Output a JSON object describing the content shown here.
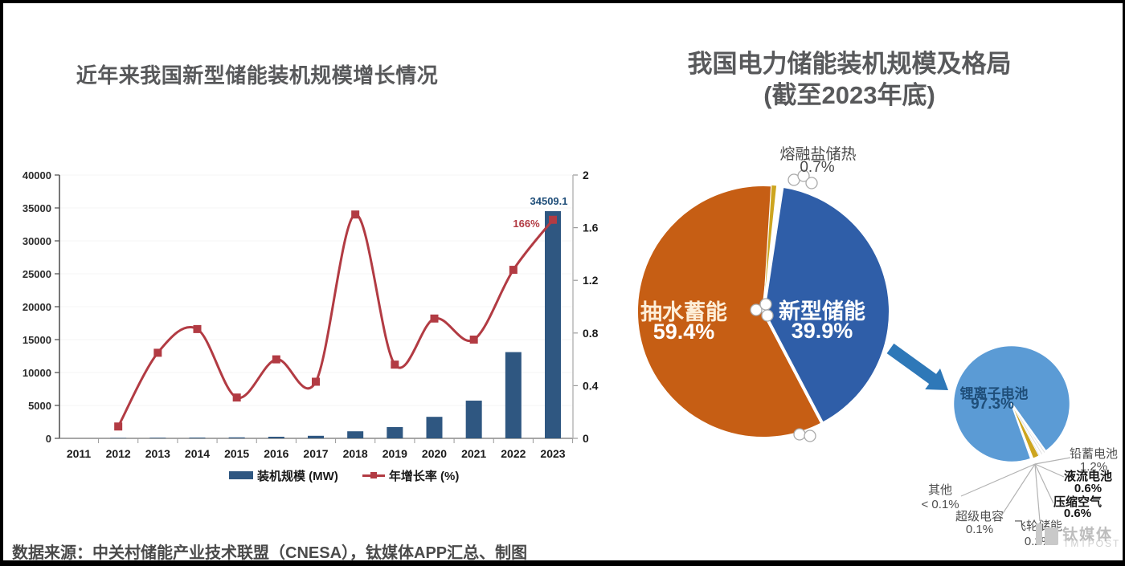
{
  "colors": {
    "bar": "#2F5781",
    "bar_label": "#1F4E79",
    "line": "#B23B43",
    "pie_orange": "#C65E14",
    "pie_blue": "#2F5EA8",
    "pie_gold": "#CDA51F",
    "pie_lightblue": "#5B9BD5",
    "arrow": "#2E78B8",
    "axis_dark": "#4a4a4a",
    "axis_gray": "#8a8a8a",
    "axis_light": "#b8b8b8",
    "leader_line": "#b3b3b3"
  },
  "chart_data": [
    {
      "type": "bar+line",
      "title": "近年来我国新型储能装机规模增长情况",
      "categories": [
        "2011",
        "2012",
        "2013",
        "2014",
        "2015",
        "2016",
        "2017",
        "2018",
        "2019",
        "2020",
        "2021",
        "2022",
        "2023"
      ],
      "series": [
        {
          "name": "装机规模 (MW)",
          "type": "bar",
          "axis": "left",
          "values": [
            30,
            55,
            90,
            115,
            150,
            243,
            389,
            1073,
            1709,
            3269,
            5729,
            13100,
            34509.1
          ]
        },
        {
          "name": "年增长率 (%)",
          "type": "line",
          "axis": "right",
          "values": [
            null,
            0.09,
            0.65,
            0.83,
            0.31,
            0.6,
            0.43,
            1.7,
            0.56,
            0.91,
            0.75,
            1.28,
            1.66
          ]
        }
      ],
      "left_axis": {
        "ylim": [
          0,
          40000
        ],
        "ticks": [
          0,
          5000,
          10000,
          15000,
          20000,
          25000,
          30000,
          35000,
          40000
        ]
      },
      "right_axis": {
        "ylim": [
          0,
          2
        ],
        "ticks": [
          0,
          0.4,
          0.8,
          1.2,
          1.6,
          2
        ]
      },
      "annotations": [
        {
          "text": "34509.1",
          "target": "2023-bar"
        },
        {
          "text": "166%",
          "target": "2023-line-point"
        }
      ],
      "legend": [
        {
          "label": "装机规模 (MW)",
          "swatch": "bar"
        },
        {
          "label": "年增长率 (%)",
          "swatch": "line"
        }
      ],
      "grid": "off"
    },
    {
      "type": "pie",
      "title": "我国电力储能装机规模及格局",
      "subtitle": "(截至2023年底)",
      "slices": [
        {
          "label": "抽水蓄能",
          "pct": 59.4,
          "pct_label": "59.4%"
        },
        {
          "label": "新型储能",
          "pct": 39.9,
          "pct_label": "39.9%"
        },
        {
          "label": "熔融盐储热",
          "pct": 0.7,
          "pct_label": "0.7%"
        }
      ]
    },
    {
      "type": "pie",
      "slices": [
        {
          "label": "锂离子电池",
          "pct": 97.3,
          "pct_label": "97.3%"
        },
        {
          "label": "铅蓄电池",
          "pct": 1.2,
          "pct_label": "1.2%"
        },
        {
          "label": "液流电池",
          "pct": 0.6,
          "pct_label": "0.6%"
        },
        {
          "label": "压缩空气",
          "pct": 0.6,
          "pct_label": "0.6%"
        },
        {
          "label": "飞轮储能",
          "pct": 0.2,
          "pct_label": "0.2%"
        },
        {
          "label": "超级电容",
          "pct": 0.1,
          "pct_label": "0.1%"
        },
        {
          "label": "其他",
          "pct": 0.05,
          "pct_label": "< 0.1%"
        }
      ]
    }
  ],
  "source": {
    "text": "数据来源：中关村储能产业技术联盟（CNESA），钛媒体APP汇总、制图"
  },
  "watermark": {
    "name": "钛媒体",
    "sub": "TMTPOST"
  }
}
